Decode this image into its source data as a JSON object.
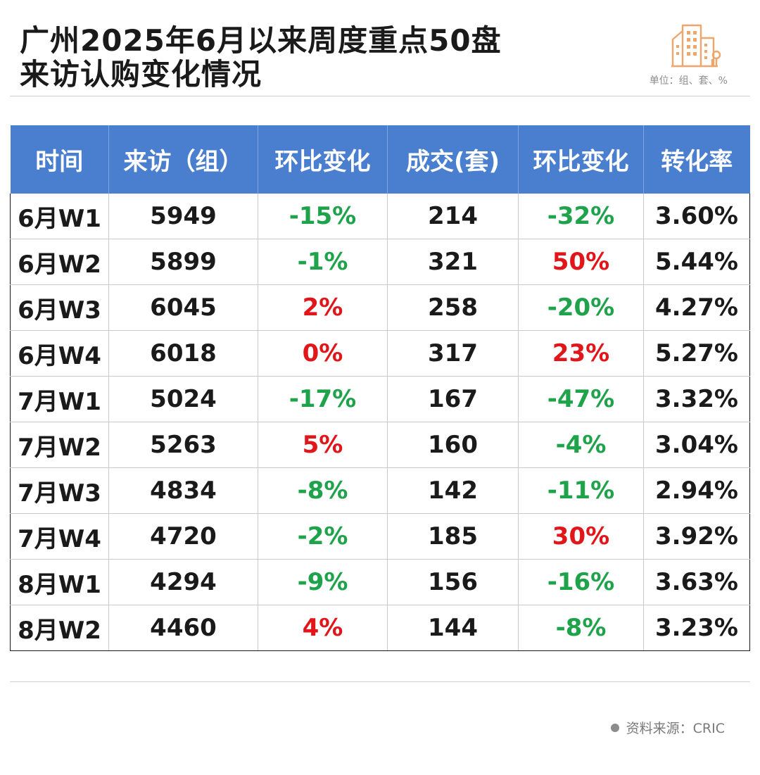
{
  "title_line1": "广州2025年6月以来周度重点50盘",
  "title_line2": "来访认购变化情况",
  "unit": "单位：组、套、%",
  "source": "资料来源：CRIC",
  "colors": {
    "header_bg": "#4a7fd0",
    "positive": "#e0161a",
    "negative": "#1fa34a",
    "logo": "#f0a56a"
  },
  "logo_icon": "buildings-icon",
  "chart_data": {
    "type": "table",
    "columns": [
      "时间",
      "来访（组）",
      "环比变化",
      "成交(套)",
      "环比变化",
      "转化率"
    ],
    "rows": [
      [
        "6月W1",
        "5949",
        "-15%",
        "214",
        "-32%",
        "3.60%"
      ],
      [
        "6月W2",
        "5899",
        "-1%",
        "321",
        "50%",
        "5.44%"
      ],
      [
        "6月W3",
        "6045",
        "2%",
        "258",
        "-20%",
        "4.27%"
      ],
      [
        "6月W4",
        "6018",
        "0%",
        "317",
        "23%",
        "5.27%"
      ],
      [
        "7月W1",
        "5024",
        "-17%",
        "167",
        "-47%",
        "3.32%"
      ],
      [
        "7月W2",
        "5263",
        "5%",
        "160",
        "-4%",
        "3.04%"
      ],
      [
        "7月W3",
        "4834",
        "-8%",
        "142",
        "-11%",
        "2.94%"
      ],
      [
        "7月W4",
        "4720",
        "-2%",
        "185",
        "30%",
        "3.92%"
      ],
      [
        "8月W1",
        "4294",
        "-9%",
        "156",
        "-16%",
        "3.63%"
      ],
      [
        "8月W2",
        "4460",
        "4%",
        "144",
        "-8%",
        "3.23%"
      ]
    ]
  }
}
